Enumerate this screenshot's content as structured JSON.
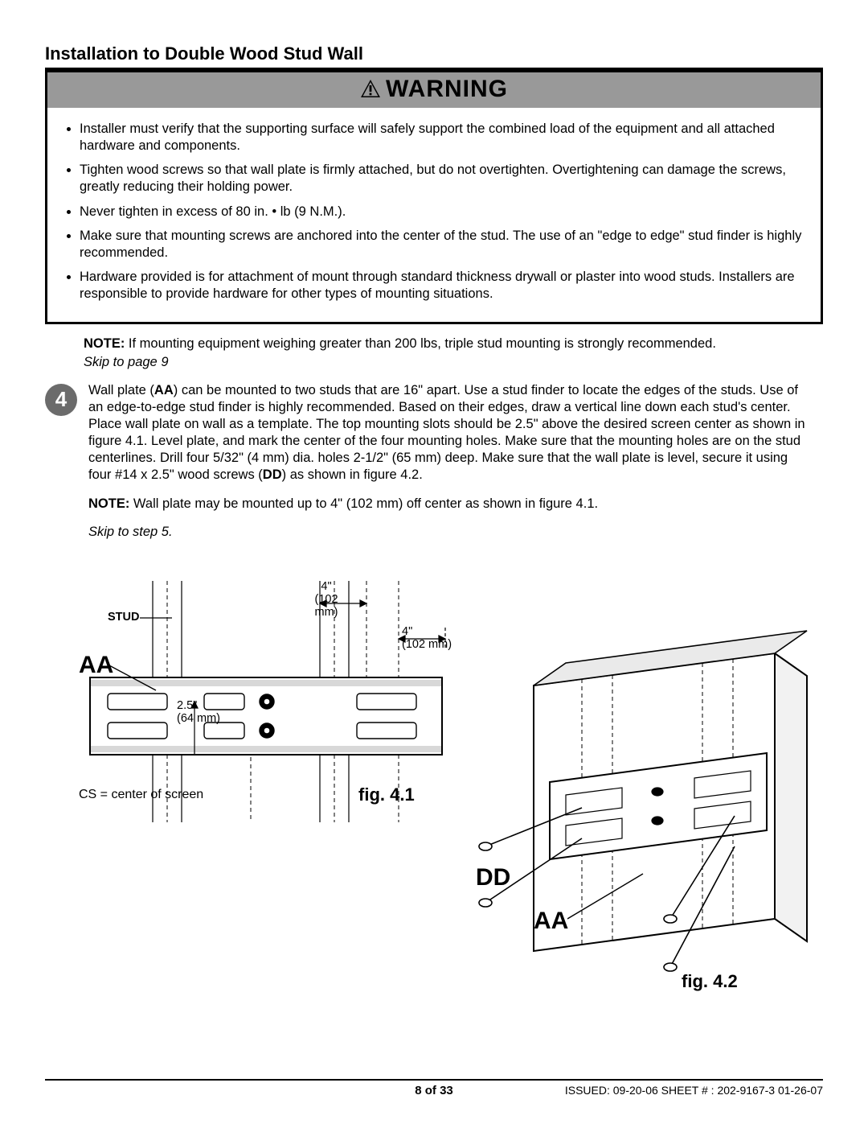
{
  "title": "Installation to Double Wood Stud Wall",
  "warning": {
    "header": "WARNING",
    "bullets": [
      "Installer must verify that the supporting surface will safely support the combined load of the equipment and all attached hardware and components.",
      "Tighten wood screws so that wall plate is firmly attached, but do not overtighten. Overtightening can damage the screws, greatly reducing their holding power.",
      "Never tighten in excess of 80 in. • lb (9 N.M.).",
      "Make sure that mounting screws are anchored into the center of the stud. The use of an \"edge to edge\" stud finder is highly recommended.",
      "Hardware provided is for attachment of mount through standard thickness drywall or plaster into wood studs. Installers are responsible to provide hardware for other types of mounting situations."
    ]
  },
  "notes": {
    "note1_prefix": "NOTE:",
    "note1_text": " If mounting equipment weighing greater than 200 lbs, triple stud mounting is strongly recommended.",
    "skip_page": "Skip to page 9",
    "note2_prefix": "NOTE:",
    "note2_text": " Wall plate may be mounted up to 4\" (102 mm) off center as shown in figure 4.1.",
    "skip_step": "Skip to step 5."
  },
  "step": {
    "number": "4",
    "body_html": "Wall plate (<b>AA</b>) can be mounted to two studs that are 16\" apart. Use a stud finder to locate the edges of the studs. Use of an edge-to-edge stud finder is highly recommended. Based on their edges, draw a vertical line down each stud's center. Place wall plate on wall as a template. The top mounting slots should be 2.5\" above the desired screen center as shown in figure 4.1. Level plate, and mark the center of the four mounting holes. Make sure that the mounting holes are on the stud centerlines. Drill four 5/32\" (4 mm) dia. holes 2-1/2\" (65 mm) deep. Make sure that the wall plate is level, secure it using four #14 x 2.5\" wood screws (<b>DD</b>) as shown in figure 4.2."
  },
  "diagram": {
    "labels": {
      "AA": "AA",
      "DD": "DD",
      "stud": "STUD",
      "offset_in": "4\"",
      "offset_mm": "(102 mm)",
      "height_in": "2.5\"",
      "height_mm": "(64 mm)",
      "cs": "CS = center of screen",
      "fig41": "fig. 4.1",
      "fig42": "fig. 4.2"
    },
    "colors": {
      "stroke": "#000000",
      "fill_light": "#ffffff",
      "hatch": "#9a9a9a"
    }
  },
  "footer": {
    "page": "8 of 33",
    "issued": "ISSUED: 09-20-06  SHEET # : 202-9167-3 01-26-07"
  }
}
